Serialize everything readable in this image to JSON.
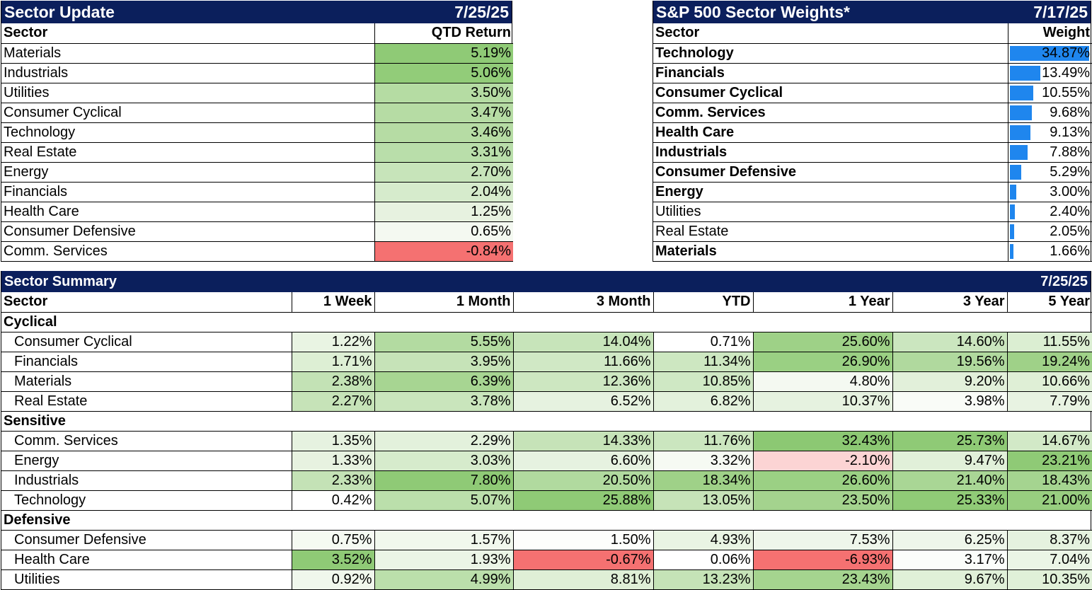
{
  "sector_update": {
    "title": "Sector Update",
    "date": "7/25/25",
    "col_sector": "Sector",
    "col_return": "QTD Return",
    "rows": [
      {
        "sector": "Materials",
        "value": "5.19%",
        "color": "#8fca76"
      },
      {
        "sector": "Industrials",
        "value": "5.06%",
        "color": "#92cc79"
      },
      {
        "sector": "Utilities",
        "value": "3.50%",
        "color": "#b5dca3"
      },
      {
        "sector": "Consumer Cyclical",
        "value": "3.47%",
        "color": "#b6dca4"
      },
      {
        "sector": "Technology",
        "value": "3.46%",
        "color": "#b6dca4"
      },
      {
        "sector": "Real Estate",
        "value": "3.31%",
        "color": "#b9deaa"
      },
      {
        "sector": "Energy",
        "value": "2.70%",
        "color": "#c7e4ba"
      },
      {
        "sector": "Financials",
        "value": "2.04%",
        "color": "#d6ebcc"
      },
      {
        "sector": "Health Care",
        "value": "1.25%",
        "color": "#e7f2e0"
      },
      {
        "sector": "Consumer Defensive",
        "value": "0.65%",
        "color": "#f4f9f1"
      },
      {
        "sector": "Comm. Services",
        "value": "-0.84%",
        "color": "#f57171"
      }
    ]
  },
  "sector_weights": {
    "title": "S&P 500 Sector Weights*",
    "date": "7/17/25",
    "col_sector": "Sector",
    "col_weight": "Weight",
    "bar_color": "#1f86ee",
    "rows": [
      {
        "sector": "Technology",
        "value": "34.87%",
        "weight": 34.87,
        "bold": true
      },
      {
        "sector": "Financials",
        "value": "13.49%",
        "weight": 13.49,
        "bold": true
      },
      {
        "sector": "Consumer Cyclical",
        "value": "10.55%",
        "weight": 10.55,
        "bold": true
      },
      {
        "sector": "Comm. Services",
        "value": "9.68%",
        "weight": 9.68,
        "bold": true
      },
      {
        "sector": "Health Care",
        "value": "9.13%",
        "weight": 9.13,
        "bold": true
      },
      {
        "sector": "Industrials",
        "value": "7.88%",
        "weight": 7.88,
        "bold": true
      },
      {
        "sector": "Consumer Defensive",
        "value": "5.29%",
        "weight": 5.29,
        "bold": true
      },
      {
        "sector": "Energy",
        "value": "3.00%",
        "weight": 3.0,
        "bold": true
      },
      {
        "sector": "Utilities",
        "value": "2.40%",
        "weight": 2.4,
        "bold": false
      },
      {
        "sector": "Real Estate",
        "value": "2.05%",
        "weight": 2.05,
        "bold": false
      },
      {
        "sector": "Materials",
        "value": "1.66%",
        "weight": 1.66,
        "bold": true
      }
    ]
  },
  "sector_summary": {
    "title": "Sector Summary",
    "date": "7/25/25",
    "columns": [
      "Sector",
      "1 Week",
      "1 Month",
      "3 Month",
      "YTD",
      "1 Year",
      "3 Year",
      "5 Year"
    ],
    "groups": [
      {
        "name": "Cyclical",
        "rows": [
          {
            "sector": "Consumer Cyclical",
            "values": [
              "1.22%",
              "5.55%",
              "14.04%",
              "0.71%",
              "25.60%",
              "14.60%",
              "11.55%"
            ],
            "colors": [
              "#e9f4e3",
              "#b3dba1",
              "#c7e4ba",
              "#ffffff",
              "#9ed187",
              "#cbe6bf",
              "#dbeed2"
            ]
          },
          {
            "sector": "Financials",
            "values": [
              "1.71%",
              "3.95%",
              "11.66%",
              "11.34%",
              "26.90%",
              "19.56%",
              "19.24%"
            ],
            "colors": [
              "#ddefd4",
              "#c6e3b8",
              "#d0e8c5",
              "#cde7c1",
              "#9ad083",
              "#b0d99e",
              "#9fd188"
            ]
          },
          {
            "sector": "Materials",
            "values": [
              "2.38%",
              "6.39%",
              "12.36%",
              "10.85%",
              "4.80%",
              "9.20%",
              "10.66%"
            ],
            "colors": [
              "#c3e2b5",
              "#a7d592",
              "#cde7c1",
              "#cfe8c4",
              "#f4f9f1",
              "#e2f0da",
              "#dfefd6"
            ]
          },
          {
            "sector": "Real Estate",
            "values": [
              "2.27%",
              "3.78%",
              "6.52%",
              "6.82%",
              "10.37%",
              "3.98%",
              "7.79%"
            ],
            "colors": [
              "#c6e3b8",
              "#c9e5bc",
              "#e6f2e0",
              "#e3f1dc",
              "#e6f2e0",
              "#f9fcf7",
              "#e8f3e2"
            ]
          }
        ]
      },
      {
        "name": "Sensitive",
        "rows": [
          {
            "sector": "Comm. Services",
            "values": [
              "1.35%",
              "2.29%",
              "14.33%",
              "11.76%",
              "32.43%",
              "25.73%",
              "14.67%"
            ],
            "colors": [
              "#e6f2e0",
              "#e3f1dc",
              "#c6e3b8",
              "#cbe6bf",
              "#8cc873",
              "#8fca76",
              "#d2e9c7"
            ]
          },
          {
            "sector": "Energy",
            "values": [
              "1.33%",
              "3.03%",
              "6.60%",
              "3.32%",
              "-2.10%",
              "9.47%",
              "23.21%"
            ],
            "colors": [
              "#e7f2e0",
              "#d6ebcc",
              "#e6f2e0",
              "#f6faf3",
              "#fcd4d4",
              "#e1f0d9",
              "#8fca76"
            ]
          },
          {
            "sector": "Industrials",
            "values": [
              "2.33%",
              "7.80%",
              "20.50%",
              "18.34%",
              "26.60%",
              "21.40%",
              "18.43%"
            ],
            "colors": [
              "#c4e2b6",
              "#8fca76",
              "#b1da9f",
              "#9fd188",
              "#9bd084",
              "#a9d695",
              "#a5d490"
            ]
          },
          {
            "sector": "Technology",
            "values": [
              "0.42%",
              "5.07%",
              "25.88%",
              "13.05%",
              "23.50%",
              "25.33%",
              "21.00%"
            ],
            "colors": [
              "#ffffff",
              "#bbdfab",
              "#8fca76",
              "#c6e3b8",
              "#a4d38e",
              "#90cb77",
              "#98ce80"
            ]
          }
        ]
      },
      {
        "name": "Defensive",
        "rows": [
          {
            "sector": "Consumer Defensive",
            "values": [
              "0.75%",
              "1.57%",
              "1.50%",
              "4.93%",
              "7.53%",
              "6.25%",
              "8.37%"
            ],
            "colors": [
              "#f5faf2",
              "#f1f8ed",
              "#fdfefc",
              "#e9f4e3",
              "#eef6ea",
              "#eef6ea",
              "#e5f2df"
            ]
          },
          {
            "sector": "Health Care",
            "values": [
              "3.52%",
              "1.93%",
              "-0.67%",
              "0.06%",
              "-6.93%",
              "3.17%",
              "7.04%"
            ],
            "colors": [
              "#8fca76",
              "#ebf5e6",
              "#f57171",
              "#ffffff",
              "#f57171",
              "#fbfdfa",
              "#ebf5e6"
            ]
          },
          {
            "sector": "Utilities",
            "values": [
              "0.92%",
              "4.99%",
              "8.81%",
              "13.23%",
              "23.43%",
              "9.67%",
              "10.35%"
            ],
            "colors": [
              "#f0f7ec",
              "#bbdfab",
              "#dfefd6",
              "#c5e3b7",
              "#a5d48f",
              "#e0f0d8",
              "#e0f0d8"
            ]
          }
        ]
      }
    ]
  }
}
